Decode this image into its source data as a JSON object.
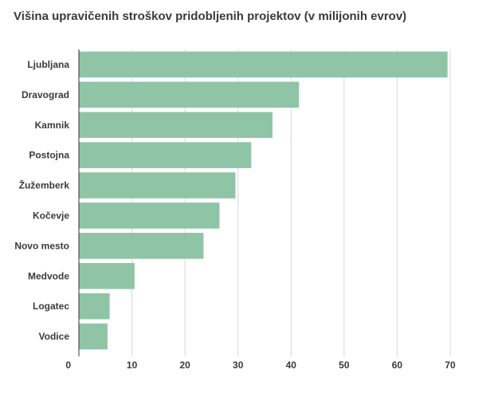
{
  "chart_data": {
    "type": "bar",
    "orientation": "horizontal",
    "title": "Višina upravičenih stroškov pridobljenih projektov (v milijonih evrov)",
    "categories": [
      "Ljubljana",
      "Dravograd",
      "Kamnik",
      "Postojna",
      "Žužemberk",
      "Kočevje",
      "Novo mesto",
      "Medvode",
      "Logatec",
      "Vodice"
    ],
    "values": [
      69.5,
      41.5,
      36.5,
      32.5,
      29.5,
      26.5,
      23.5,
      10.5,
      5.8,
      5.4
    ],
    "xlim": [
      0,
      70
    ],
    "xticks": [
      "0",
      "10",
      "20",
      "30",
      "40",
      "50",
      "60",
      "70"
    ],
    "grid": true,
    "bar_color": "#8fc5a6"
  }
}
